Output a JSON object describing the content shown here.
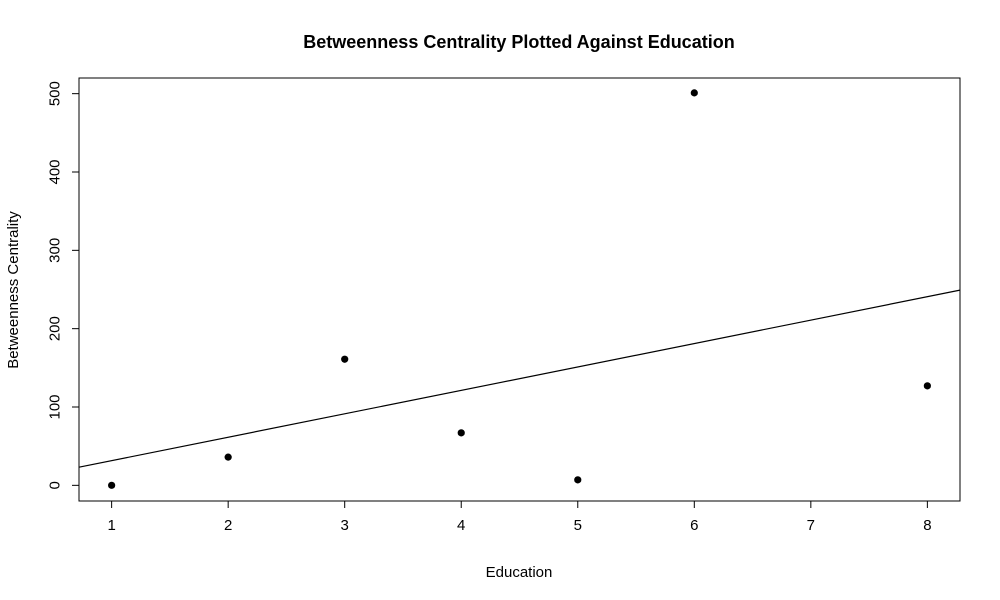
{
  "chart_data": {
    "type": "scatter",
    "title": "Betweenness Centrality Plotted Against Education",
    "xlabel": "Education",
    "ylabel": "Betweenness Centrality",
    "xlim": [
      0.72,
      8.28
    ],
    "ylim": [
      -20,
      520
    ],
    "x_ticks": [
      1,
      2,
      3,
      4,
      5,
      6,
      7,
      8
    ],
    "y_ticks": [
      0,
      100,
      200,
      300,
      400,
      500
    ],
    "grid": false,
    "legend": "none",
    "series": [
      {
        "x": [
          1,
          2,
          3,
          4,
          5,
          6,
          8
        ],
        "y": [
          0,
          36,
          161,
          67,
          7,
          501,
          127
        ]
      }
    ],
    "regression_line": {
      "intercept": 1.6,
      "slope": 29.9
    },
    "colors": {
      "points": "#000000",
      "line": "#000000",
      "axes": "#000000"
    }
  }
}
